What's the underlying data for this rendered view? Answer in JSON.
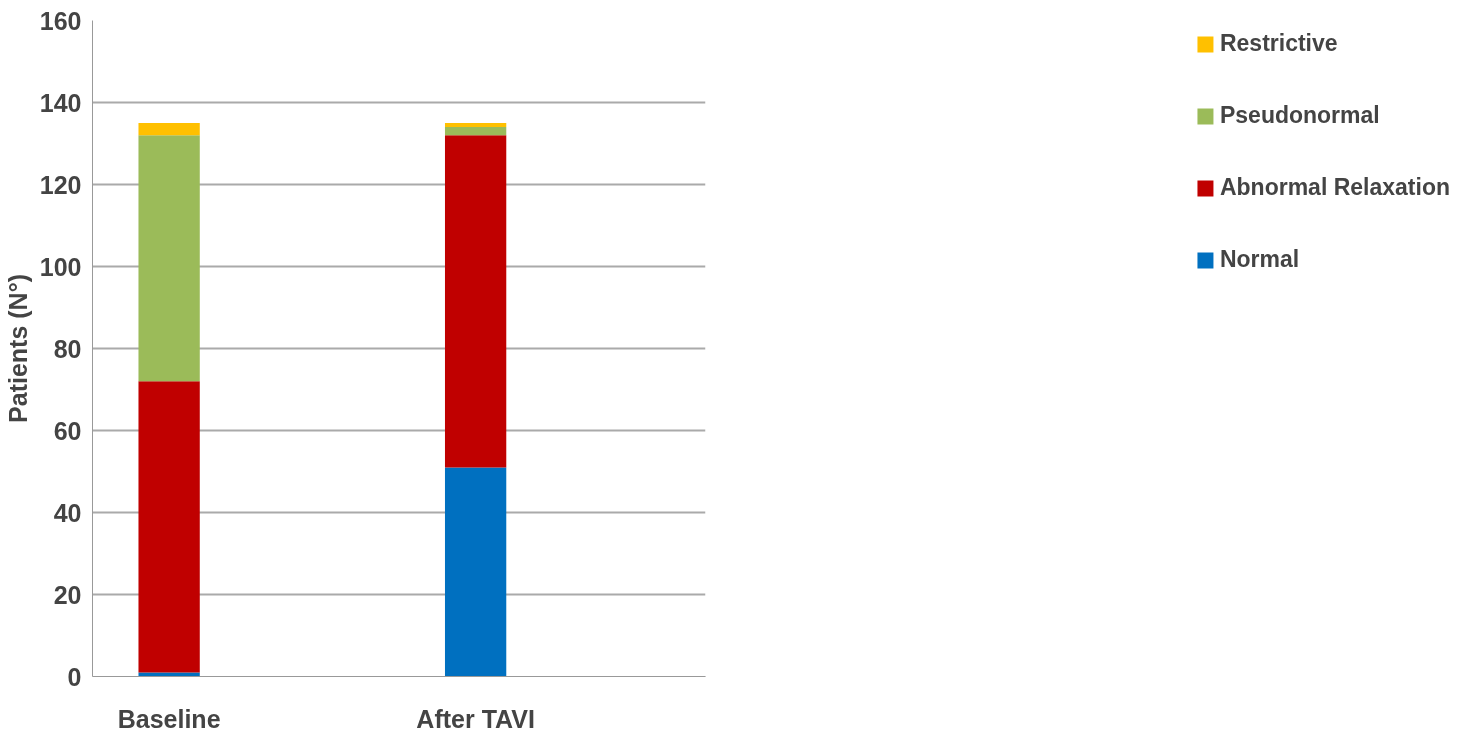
{
  "chart_data": {
    "type": "bar",
    "stacked": true,
    "ylabel": "Patients (N°)",
    "categories": [
      "Baseline",
      null,
      "After TAVI",
      null
    ],
    "series": [
      {
        "name": "Normal",
        "color": "#0070c0",
        "values": [
          1,
          null,
          51,
          null
        ]
      },
      {
        "name": "Abnormal Relaxation",
        "color": "#c00000",
        "values": [
          71,
          null,
          81,
          null
        ]
      },
      {
        "name": "Pseudonormal",
        "color": "#9bbb59",
        "values": [
          60,
          null,
          2,
          null
        ]
      },
      {
        "name": "Restrictive",
        "color": "#ffc000",
        "values": [
          3,
          null,
          1,
          null
        ]
      }
    ],
    "ylim": [
      0,
      160
    ],
    "yticks": [
      0,
      20,
      40,
      60,
      80,
      100,
      120,
      140,
      160
    ],
    "grid": "y",
    "legend": "right"
  }
}
